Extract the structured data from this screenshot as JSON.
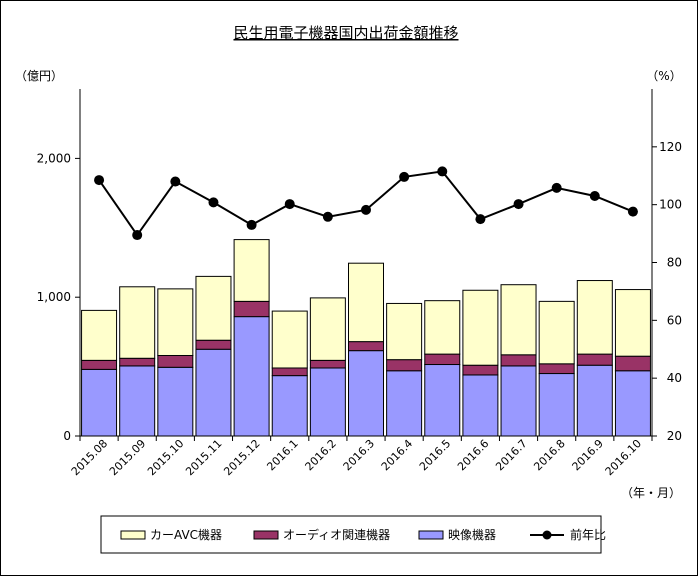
{
  "chart_data": {
    "type": "bar",
    "title": "民生用電子機器国内出荷金額推移",
    "y_left_unit": "（億円）",
    "y_right_unit": "（%）",
    "x_unit": "（年・月）",
    "categories": [
      "2015.08",
      "2015.09",
      "2015.10",
      "2015.11",
      "2015.12",
      "2016.1",
      "2016.2",
      "2016.3",
      "2016.4",
      "2016.5",
      "2016.6",
      "2016.7",
      "2016.8",
      "2016.9",
      "2016.10"
    ],
    "ylim_left": [
      0,
      2500
    ],
    "yticks_left": [
      "0",
      "1,000",
      "2,000"
    ],
    "ylim_right": [
      20,
      140
    ],
    "yticks_right": [
      "20",
      "40",
      "60",
      "80",
      "100",
      "120"
    ],
    "stacked": true,
    "series": [
      {
        "name": "映像機器",
        "type": "bar",
        "color": "#9999ff",
        "values": [
          480,
          505,
          495,
          625,
          860,
          435,
          490,
          615,
          470,
          515,
          440,
          505,
          450,
          510,
          470
        ]
      },
      {
        "name": "オーディオ関連機器",
        "type": "bar",
        "color": "#993366",
        "values": [
          65,
          55,
          85,
          65,
          110,
          55,
          55,
          65,
          80,
          75,
          70,
          80,
          70,
          80,
          105
        ]
      },
      {
        "name": "カーAVC機器",
        "type": "bar",
        "color": "#ffffcc",
        "values": [
          360,
          515,
          480,
          460,
          445,
          410,
          450,
          565,
          405,
          385,
          540,
          505,
          450,
          530,
          480
        ]
      },
      {
        "name": "前年比",
        "type": "line",
        "axis": "right",
        "color": "#000000",
        "values": [
          108.5,
          89.5,
          108,
          100.8,
          93,
          100.2,
          95.8,
          98.2,
          109.6,
          111.5,
          95,
          100.2,
          105.8,
          103,
          97.6
        ]
      }
    ],
    "legend_order": [
      "カーAVC機器",
      "オーディオ関連機器",
      "映像機器",
      "前年比"
    ],
    "legend_position": "bottom",
    "grid": false
  }
}
